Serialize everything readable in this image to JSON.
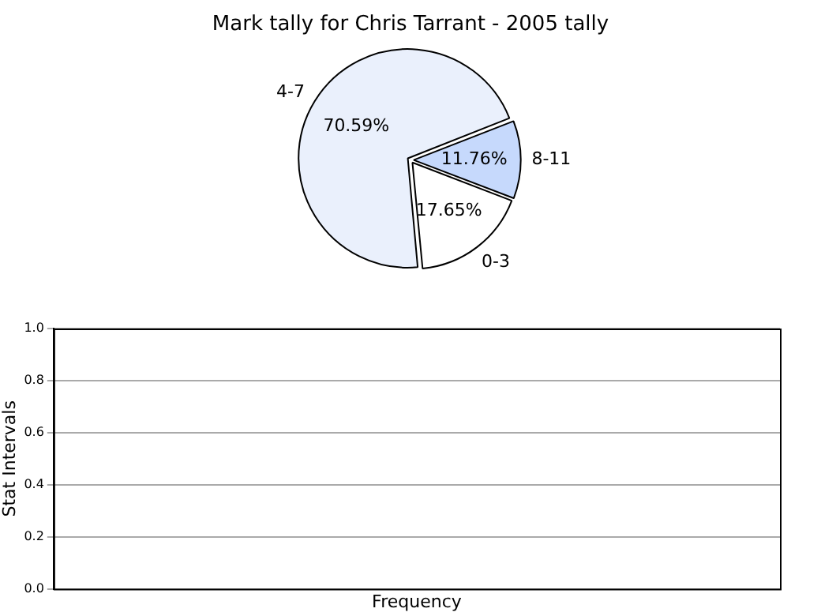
{
  "chart_data": [
    {
      "type": "pie",
      "title": "Mark tally for Chris Tarrant - 2005 tally",
      "categories": [
        "0-3",
        "4-7",
        "8-11"
      ],
      "values": [
        17.65,
        70.59,
        11.76
      ],
      "colors": [
        "#ffffff",
        "#eaf0fc",
        "#c6d9fc"
      ],
      "value_labels": [
        "17.65%",
        "70.59%",
        "11.76%"
      ]
    },
    {
      "type": "bar",
      "xlabel": "Frequency",
      "ylabel": "Stat Intervals",
      "categories": [
        null
      ],
      "values": [
        null
      ],
      "ylim": [
        0,
        1
      ],
      "yticks": [
        {
          "value": 0,
          "label": "0.0"
        },
        0.2,
        0.4,
        0.6,
        0.8,
        {
          "value": 1,
          "label": "1.0"
        }
      ],
      "grid": "y",
      "tick_labels": "y"
    }
  ]
}
